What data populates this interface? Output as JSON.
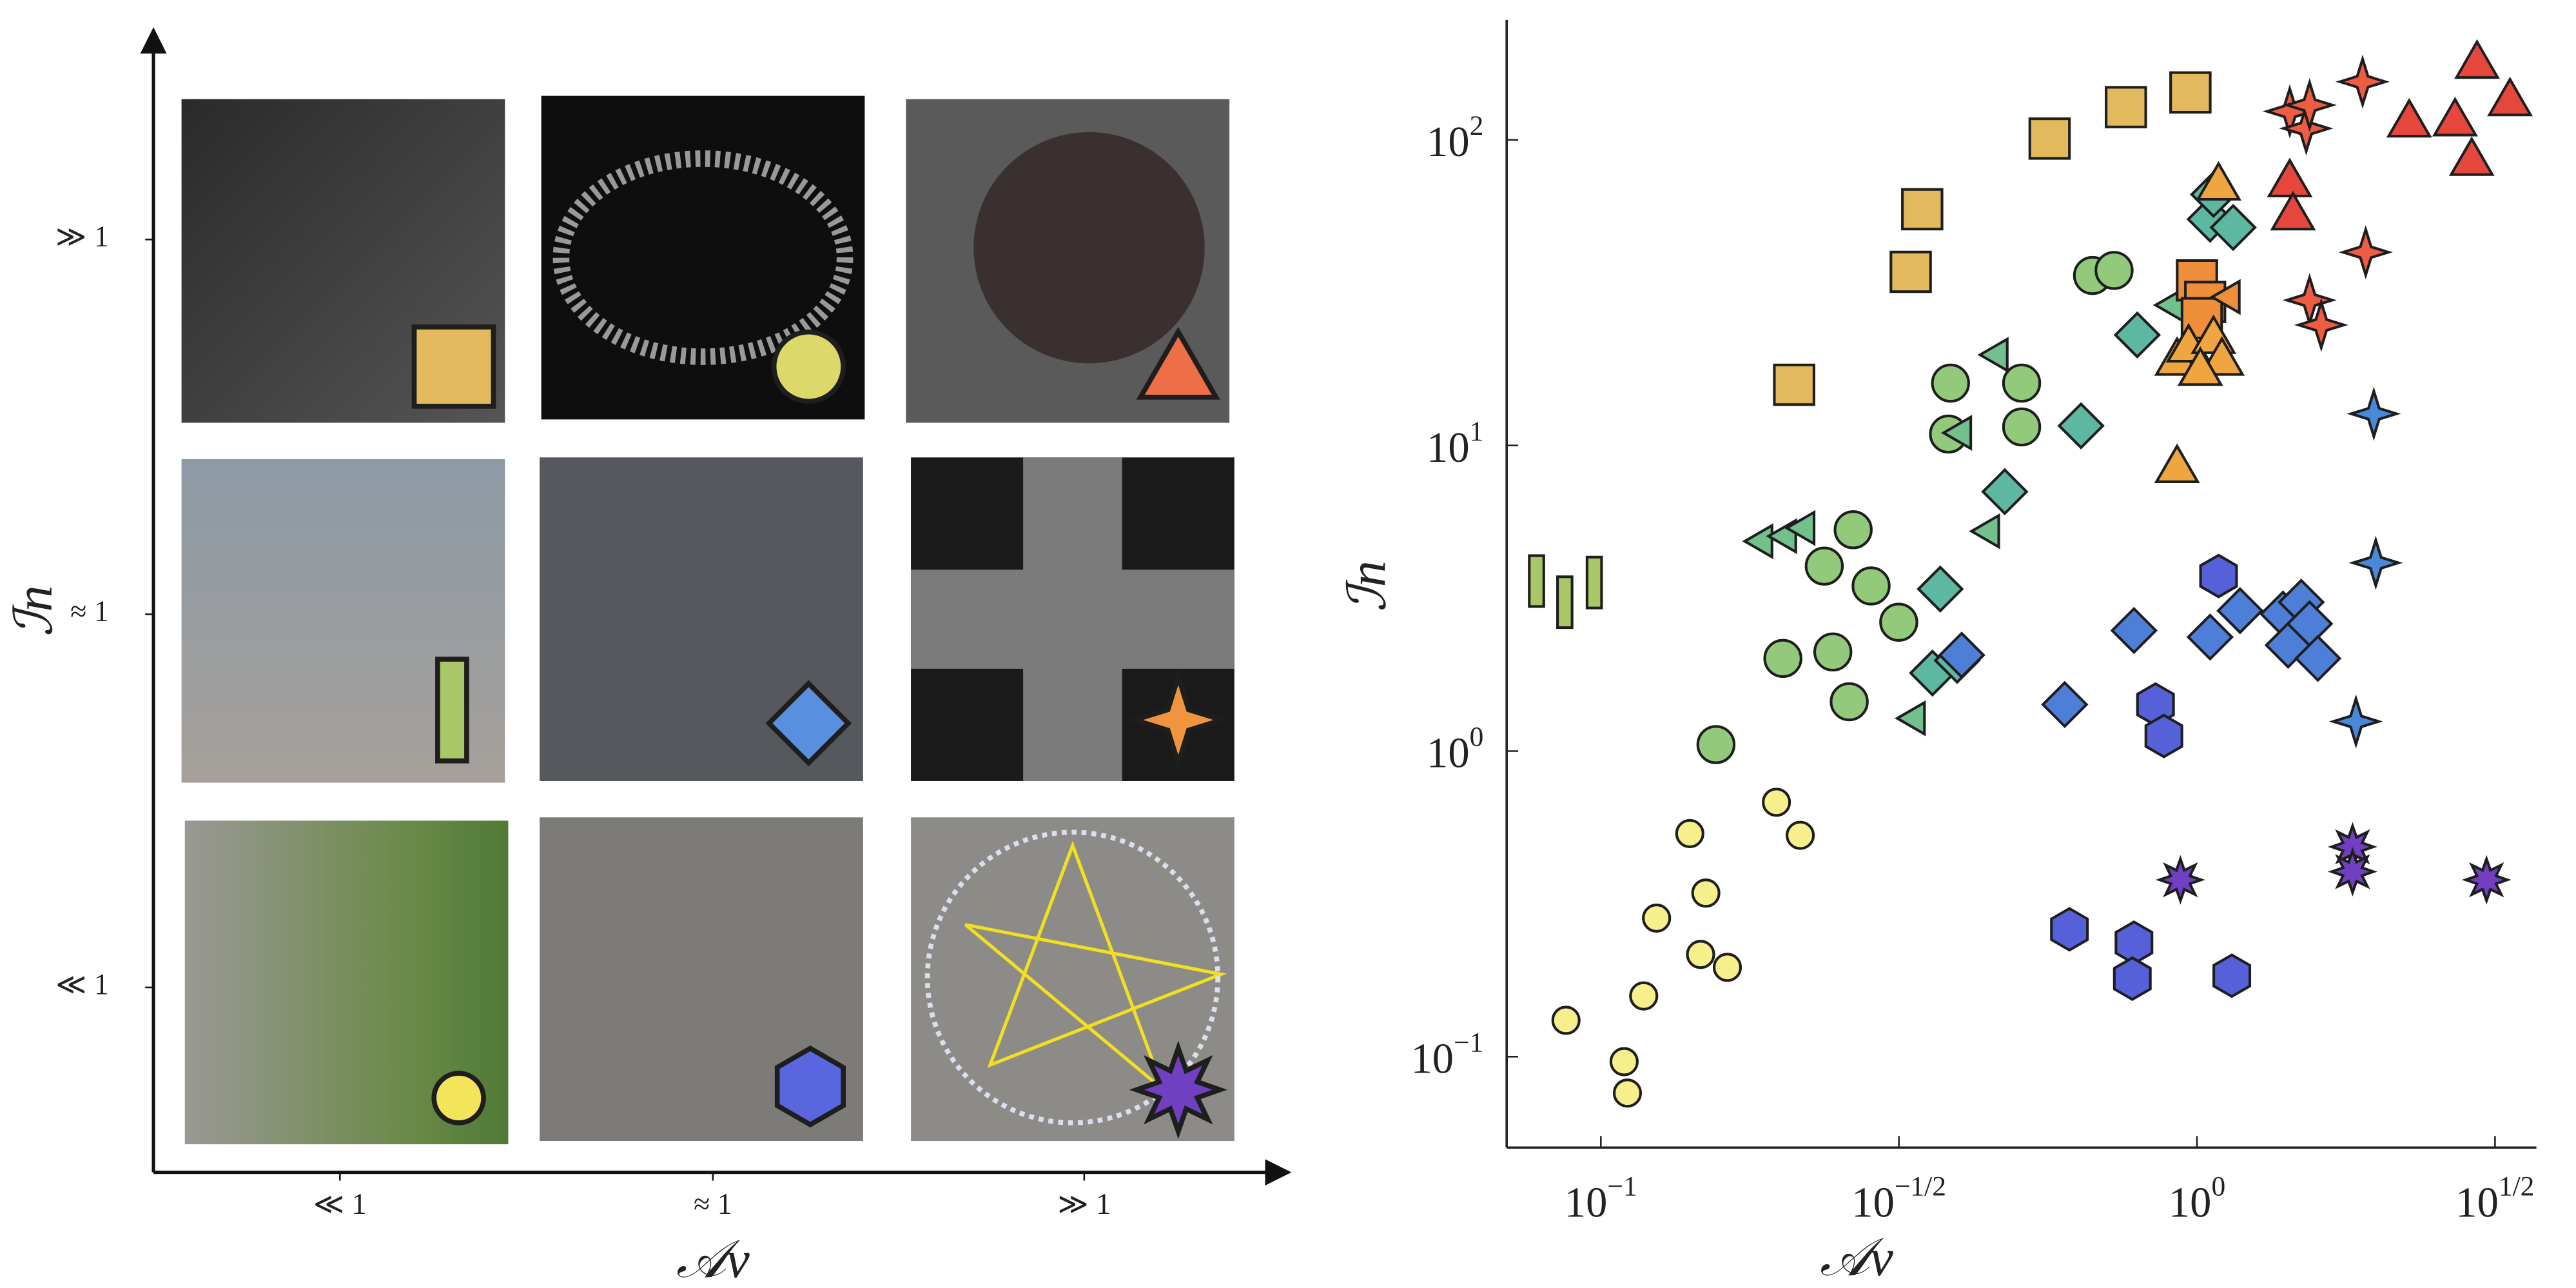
{
  "left_panel": {
    "xlabel": "𝒜v",
    "ylabel": "ℐn",
    "xticks": [
      "≪ 1",
      "≈ 1",
      "≫ 1"
    ],
    "yticks": [
      "≪ 1",
      "≈ 1",
      "≫ 1"
    ]
  },
  "chart_data": {
    "type": "scatter",
    "xlabel": "𝒜v",
    "ylabel": "ℐn",
    "xscale": "log",
    "yscale": "log",
    "xlim": [
      0.0695,
      3.71
    ],
    "ylim": [
      0.0504,
      247
    ],
    "xticks": [
      {
        "value": 0.1,
        "label": "10",
        "exponent": "−1"
      },
      {
        "value": 0.3162,
        "label": "10",
        "exponent": "−1/2"
      },
      {
        "value": 1,
        "label": "10",
        "exponent": "0"
      },
      {
        "value": 3.162,
        "label": "10",
        "exponent": "1/2"
      }
    ],
    "yticks": [
      {
        "value": 0.1,
        "label": "10",
        "exponent": "−1"
      },
      {
        "value": 1,
        "label": "10",
        "exponent": "0"
      },
      {
        "value": 10,
        "label": "10",
        "exponent": "1"
      },
      {
        "value": 100,
        "label": "10",
        "exponent": "2"
      }
    ],
    "series": [
      {
        "marker": "square",
        "color": "#e2b95c",
        "x": [
          0.211,
          0.331,
          0.346,
          0.566,
          0.76,
          0.975
        ],
        "values": [
          15.8,
          37.0,
          59.3,
          101,
          128,
          143
        ]
      },
      {
        "marker": "bar",
        "color": "#a9c766",
        "x": [
          0.078,
          0.087,
          0.0975
        ],
        "values": [
          3.6,
          3.07,
          3.56
        ]
      },
      {
        "marker": "circle-small",
        "color": "#f7ef8c",
        "x": [
          0.0874,
          0.1094,
          0.1108,
          0.118,
          0.124,
          0.141,
          0.147,
          0.15,
          0.163,
          0.197,
          0.216
        ],
        "values": [
          0.1315,
          0.0963,
          0.076,
          0.158,
          0.284,
          0.537,
          0.216,
          0.343,
          0.196,
          0.68,
          0.53
        ]
      },
      {
        "marker": "circle",
        "color": "#93c97b",
        "x": [
          0.156,
          0.202,
          0.245,
          0.261,
          0.237,
          0.265,
          0.284,
          0.316,
          0.383,
          0.386,
          0.508,
          0.508,
          0.668,
          0.726
        ],
        "values": [
          1.05,
          2.01,
          2.11,
          1.45,
          4.03,
          5.3,
          3.47,
          2.64,
          10.9,
          16.0,
          16.0,
          11.5,
          36.0,
          37.4
        ]
      },
      {
        "marker": "triangle-left",
        "color": "#72c08c",
        "x": [
          0.187,
          0.205,
          0.22,
          0.337,
          0.403,
          0.449,
          0.464,
          0.914
        ],
        "values": [
          4.86,
          5.05,
          5.37,
          1.28,
          11.0,
          5.24,
          19.8,
          28.8
        ]
      },
      {
        "marker": "diamond",
        "color": "#5db8a2",
        "x": [
          0.36,
          0.371,
          0.396,
          0.476,
          0.639,
          0.794,
          1.052,
          1.15,
          1.066
        ],
        "values": [
          1.8,
          3.39,
          1.98,
          7.06,
          11.6,
          23.0,
          55.0,
          51.7,
          66.3
        ]
      },
      {
        "marker": "square",
        "color": "#ef8f3c",
        "x": [
          1.0,
          1.032,
          1.019
        ],
        "values": [
          34.7,
          29.5,
          26.1
        ]
      },
      {
        "marker": "triangle-left",
        "color": "#ef8f3c",
        "x": [
          1.137
        ],
        "values": [
          30.6
        ]
      },
      {
        "marker": "triangle",
        "color": "#f0a640",
        "x": [
          0.926,
          0.968,
          1.066,
          1.101,
          1.013,
          1.087,
          0.926
        ],
        "values": [
          19.1,
          21.1,
          22.5,
          19.1,
          17.7,
          71.5,
          8.51
        ]
      },
      {
        "marker": "triangle",
        "color": "#e5473d",
        "x": [
          1.431,
          1.449,
          2.27,
          2.71,
          2.89,
          2.95,
          3.35
        ],
        "values": [
          73.3,
          57.1,
          115,
          116,
          86.1,
          179,
          135
        ]
      },
      {
        "marker": "star4",
        "color": "#ee5c42",
        "x": [
          1.431,
          1.525,
          1.545,
          1.896,
          1.919,
          1.545,
          1.616
        ],
        "values": [
          124,
          109,
          130,
          155,
          42.9,
          29.9,
          24.8
        ]
      },
      {
        "marker": "diamond",
        "color": "#4d7fd9",
        "x": [
          0.403,
          0.6,
          0.784,
          1.052,
          1.181,
          1.394,
          1.422,
          1.496,
          1.545,
          1.595
        ],
        "values": [
          2.06,
          1.42,
          2.48,
          2.36,
          2.88,
          2.81,
          2.22,
          3.07,
          2.61,
          2.01
        ]
      },
      {
        "marker": "star4",
        "color": "#4a88d9",
        "x": [
          1.98,
          1.995,
          1.848
        ],
        "values": [
          12.7,
          4.13,
          1.25
        ]
      },
      {
        "marker": "hexagon",
        "color": "#5560d9",
        "x": [
          1.087,
          0.852,
          0.88,
          0.611,
          0.784,
          0.779,
          1.144
        ],
        "values": [
          3.74,
          1.42,
          1.12,
          0.261,
          0.236,
          0.18,
          0.184
        ]
      },
      {
        "marker": "star8",
        "color": "#7140c2",
        "x": [
          0.938,
          1.824,
          1.824,
          3.06
        ],
        "values": [
          0.379,
          0.486,
          0.403,
          0.379
        ]
      }
    ]
  }
}
